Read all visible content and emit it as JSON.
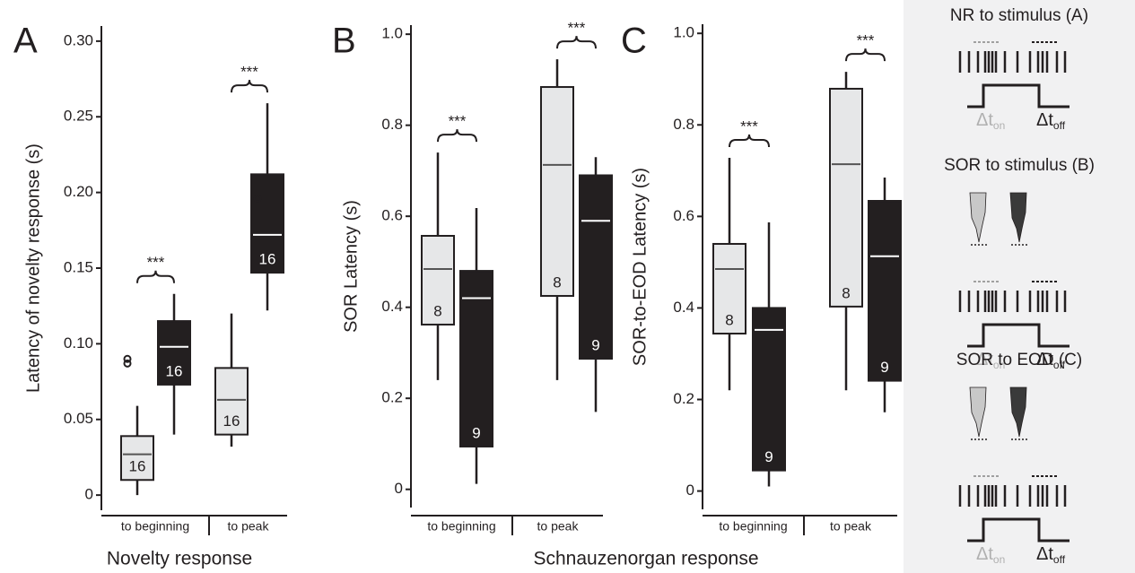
{
  "chart_data": [
    {
      "type": "box",
      "panel_label": "A",
      "ylabel": "Latency of novelty response (s)",
      "xlabel": "Novelty response",
      "ylim": [
        -0.01,
        0.31
      ],
      "yticks": [
        0,
        0.05,
        {
          "value": 0.1,
          "label": "0.10"
        },
        0.15,
        {
          "value": 0.2,
          "label": "0.20"
        },
        0.25,
        {
          "value": 0.3,
          "label": "0.30"
        }
      ],
      "categories": [
        "to beginning",
        "to peak"
      ],
      "significance": [
        "***",
        "***"
      ],
      "series": [
        {
          "color": "#e6e7e8",
          "median_color": "#555555",
          "label_color": "#231f20",
          "boxes": [
            {
              "whislo": 0,
              "q1": 0.01,
              "med": 0.027,
              "q3": 0.039,
              "whishi": 0.059,
              "outliers": [
                0.087,
                0.09
              ],
              "n": 16
            },
            {
              "whislo": 0.032,
              "q1": 0.04,
              "med": 0.063,
              "q3": 0.084,
              "whishi": 0.12,
              "outliers": [],
              "n": 16
            }
          ]
        },
        {
          "color": "#231f20",
          "median_color": "#ffffff",
          "label_color": "#ffffff",
          "boxes": [
            {
              "whislo": 0.04,
              "q1": 0.073,
              "med": 0.098,
              "q3": 0.115,
              "whishi": 0.133,
              "outliers": [],
              "n": 16
            },
            {
              "whislo": 0.122,
              "q1": 0.147,
              "med": 0.172,
              "q3": 0.212,
              "whishi": 0.259,
              "outliers": [
                0.196
              ],
              "n": 16
            }
          ]
        }
      ]
    },
    {
      "type": "box",
      "panel_label": "B",
      "ylabel": "SOR Latency (s)",
      "xlabel": "Schnauzenorgan response",
      "ylim": [
        -0.04,
        1.02
      ],
      "yticks": [
        0,
        0.2,
        0.4,
        0.6,
        0.8,
        {
          "value": 1,
          "label": "1.0"
        }
      ],
      "categories": [
        "to beginning",
        "to peak"
      ],
      "significance": [
        "***",
        "***"
      ],
      "series": [
        {
          "color": "#e6e7e8",
          "median_color": "#555555",
          "label_color": "#231f20",
          "boxes": [
            {
              "whislo": 0.24,
              "q1": 0.362,
              "med": 0.484,
              "q3": 0.557,
              "whishi": 0.74,
              "outliers": [],
              "n": 8
            },
            {
              "whislo": 0.24,
              "q1": 0.425,
              "med": 0.713,
              "q3": 0.884,
              "whishi": 0.945,
              "outliers": [],
              "n": 8
            }
          ]
        },
        {
          "color": "#231f20",
          "median_color": "#ffffff",
          "label_color": "#ffffff",
          "boxes": [
            {
              "whislo": 0.012,
              "q1": 0.094,
              "med": 0.42,
              "q3": 0.48,
              "whishi": 0.618,
              "outliers": [],
              "n": 9
            },
            {
              "whislo": 0.17,
              "q1": 0.287,
              "med": 0.59,
              "q3": 0.69,
              "whishi": 0.73,
              "outliers": [],
              "n": 9
            }
          ]
        }
      ]
    },
    {
      "type": "box",
      "panel_label": "C",
      "ylabel": "SOR-to-EOD Latency (s)",
      "ylim": [
        -0.04,
        1.02
      ],
      "yticks": [
        0,
        0.2,
        0.4,
        0.6,
        0.8,
        {
          "value": 1,
          "label": "1.0"
        }
      ],
      "categories": [
        "to beginning",
        "to peak"
      ],
      "significance": [
        "***",
        "***"
      ],
      "series": [
        {
          "color": "#e6e7e8",
          "median_color": "#555555",
          "label_color": "#231f20",
          "boxes": [
            {
              "whislo": 0.22,
              "q1": 0.344,
              "med": 0.485,
              "q3": 0.54,
              "whishi": 0.728,
              "outliers": [],
              "n": 8
            },
            {
              "whislo": 0.22,
              "q1": 0.403,
              "med": 0.714,
              "q3": 0.879,
              "whishi": 0.916,
              "outliers": [],
              "n": 8
            }
          ]
        },
        {
          "color": "#231f20",
          "median_color": "#ffffff",
          "label_color": "#ffffff",
          "boxes": [
            {
              "whislo": 0.01,
              "q1": 0.045,
              "med": 0.352,
              "q3": 0.4,
              "whishi": 0.587,
              "outliers": [],
              "n": 9
            },
            {
              "whislo": 0.172,
              "q1": 0.241,
              "med": 0.513,
              "q3": 0.634,
              "whishi": 0.685,
              "outliers": [],
              "n": 9
            }
          ]
        }
      ]
    }
  ],
  "schematic": {
    "panels": [
      {
        "title": "NR to stimulus (A)",
        "dt_on": "Δt",
        "dt_on_sub": "on",
        "dt_off": "Δt",
        "dt_off_sub": "off"
      },
      {
        "title": "SOR to stimulus (B)",
        "dt_on": "Δt",
        "dt_on_sub": "on",
        "dt_off": "Δt",
        "dt_off_sub": "off"
      },
      {
        "title": "SOR to EOD (C)",
        "dt_on": "Δt",
        "dt_on_sub": "on",
        "dt_off": "Δt",
        "dt_off_sub": "off"
      }
    ]
  }
}
